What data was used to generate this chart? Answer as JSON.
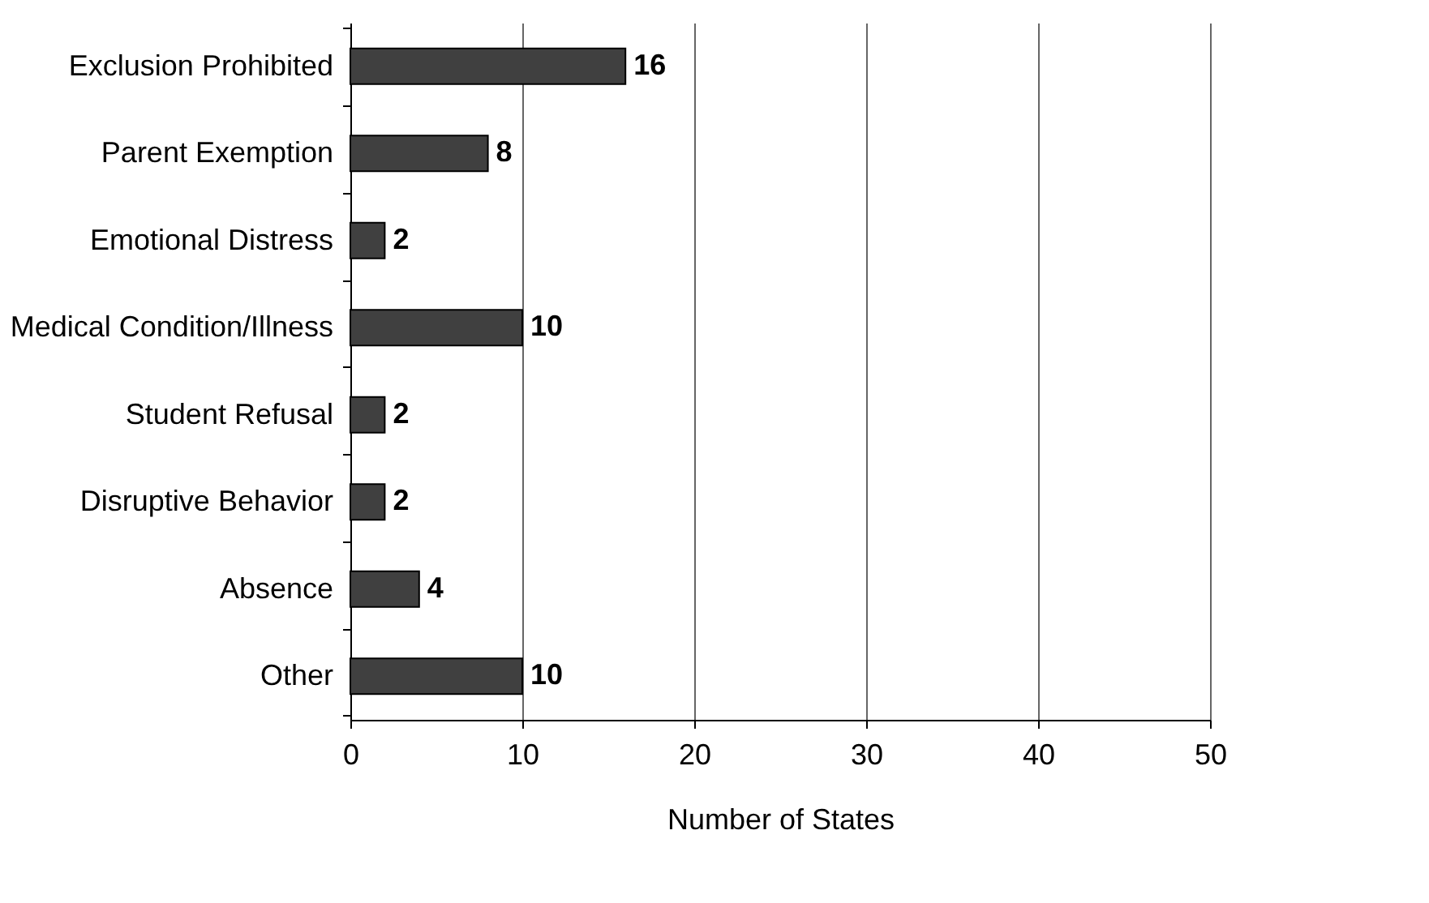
{
  "chart_data": {
    "type": "bar",
    "orientation": "horizontal",
    "xlabel": "Number of States",
    "categories": [
      "Exclusion Prohibited",
      "Parent Exemption",
      "Emotional Distress",
      "Medical Condition/Illness",
      "Student Refusal",
      "Disruptive Behavior",
      "Absence",
      "Other"
    ],
    "values": [
      16,
      8,
      2,
      10,
      2,
      2,
      4,
      10
    ],
    "color": "#404040",
    "xlim": [
      0,
      50
    ],
    "xticks": [
      0,
      10,
      20,
      30,
      40,
      50
    ],
    "grid": "x",
    "data_labels": true
  }
}
